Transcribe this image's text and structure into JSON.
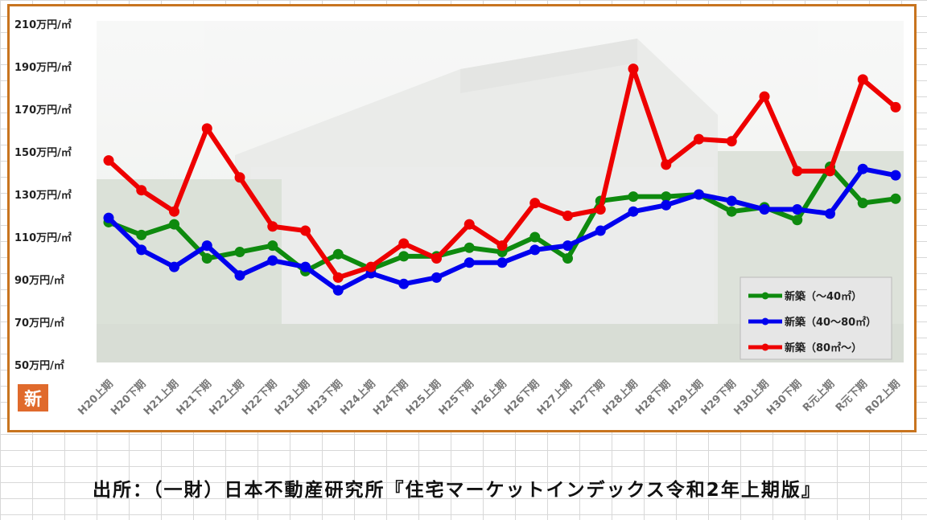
{
  "source_note": "出所：（一財）日本不動産研究所『住宅マーケットインデックス令和2年上期版』",
  "badge_text": "新",
  "chart_data": {
    "type": "line",
    "title": "",
    "xlabel": "",
    "ylabel": "",
    "ylim": [
      50,
      210
    ],
    "yticks": [
      {
        "value": 50,
        "label": "50万円/㎡"
      },
      {
        "value": 70,
        "label": "70万円/㎡"
      },
      {
        "value": 90,
        "label": "90万円/㎡"
      },
      {
        "value": 110,
        "label": "110万円/㎡"
      },
      {
        "value": 130,
        "label": "130万円/㎡"
      },
      {
        "value": 150,
        "label": "150万円/㎡"
      },
      {
        "value": 170,
        "label": "170万円/㎡"
      },
      {
        "value": 190,
        "label": "190万円/㎡"
      },
      {
        "value": 210,
        "label": "210万円/㎡"
      }
    ],
    "categories": [
      "H20上期",
      "H20下期",
      "H21上期",
      "H21下期",
      "H22上期",
      "H22下期",
      "H23上期",
      "H23下期",
      "H24上期",
      "H24下期",
      "H25上期",
      "H25下期",
      "H26上期",
      "H26下期",
      "H27上期",
      "H27下期",
      "H28上期",
      "H28下期",
      "H29上期",
      "H29下期",
      "H30上期",
      "H30下期",
      "R元上期",
      "R元下期",
      "R02上期"
    ],
    "grid": false,
    "legend_position": "bottom-right",
    "series": [
      {
        "name": "新築（～40㎡）",
        "color": "#0e8a0e",
        "values": [
          117,
          111,
          116,
          100,
          103,
          106,
          94,
          102,
          95,
          101,
          101,
          105,
          103,
          110,
          100,
          127,
          129,
          129,
          130,
          122,
          124,
          118,
          143,
          126,
          128
        ]
      },
      {
        "name": "新築（40～80㎡）",
        "color": "#0000ee",
        "values": [
          119,
          104,
          96,
          106,
          92,
          99,
          96,
          85,
          93,
          88,
          91,
          98,
          98,
          104,
          106,
          113,
          122,
          125,
          130,
          127,
          123,
          123,
          121,
          142,
          139
        ]
      },
      {
        "name": "新築（80㎡～）",
        "color": "#ee0000",
        "values": [
          146,
          132,
          122,
          161,
          138,
          115,
          113,
          91,
          96,
          107,
          100,
          116,
          106,
          126,
          120,
          123,
          189,
          144,
          156,
          155,
          176,
          141,
          141,
          184,
          171
        ]
      }
    ]
  }
}
